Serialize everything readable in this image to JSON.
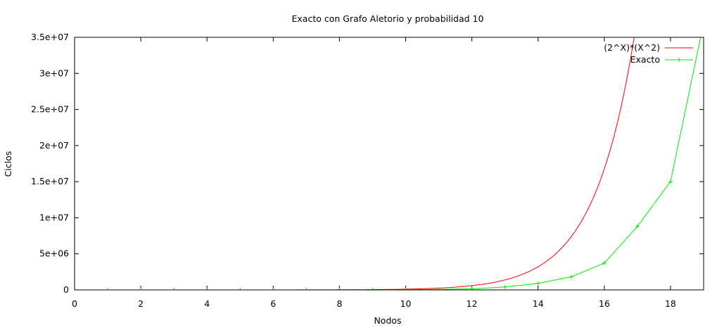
{
  "chart_data": {
    "type": "line",
    "title": "Exacto con Grafo Aletorio y probabilidad 10",
    "xlabel": "Nodos",
    "ylabel": "Ciclos",
    "xlim": [
      0,
      19
    ],
    "ylim": [
      0,
      35000000
    ],
    "x_ticks": [
      0,
      2,
      4,
      6,
      8,
      10,
      12,
      14,
      16,
      18
    ],
    "y_ticks": [
      0,
      5000000,
      10000000,
      15000000,
      20000000,
      25000000,
      30000000,
      35000000
    ],
    "y_tick_labels": [
      "0",
      "5e+06",
      "1e+07",
      "1.5e+07",
      "2e+07",
      "2.5e+07",
      "3e+07",
      "3.5e+07"
    ],
    "grid": false,
    "legend_position": "top-right",
    "series": [
      {
        "name": "(2^X)*(X^2)",
        "color": "#ff0000",
        "kind": "function",
        "formula": "2^x * x^2",
        "markers": false
      },
      {
        "name": "Exacto",
        "color": "#00ee00",
        "kind": "points",
        "markers": true,
        "x": [
          1,
          2,
          3,
          4,
          5,
          6,
          7,
          8,
          9,
          10,
          11,
          12,
          13,
          14,
          15,
          16,
          17,
          18,
          19
        ],
        "y": [
          0,
          0,
          0,
          0,
          0,
          0,
          0,
          0,
          0,
          20000,
          80000,
          150000,
          400000,
          900000,
          1800000,
          3700000,
          8800000,
          15000000,
          37000000
        ]
      }
    ]
  }
}
